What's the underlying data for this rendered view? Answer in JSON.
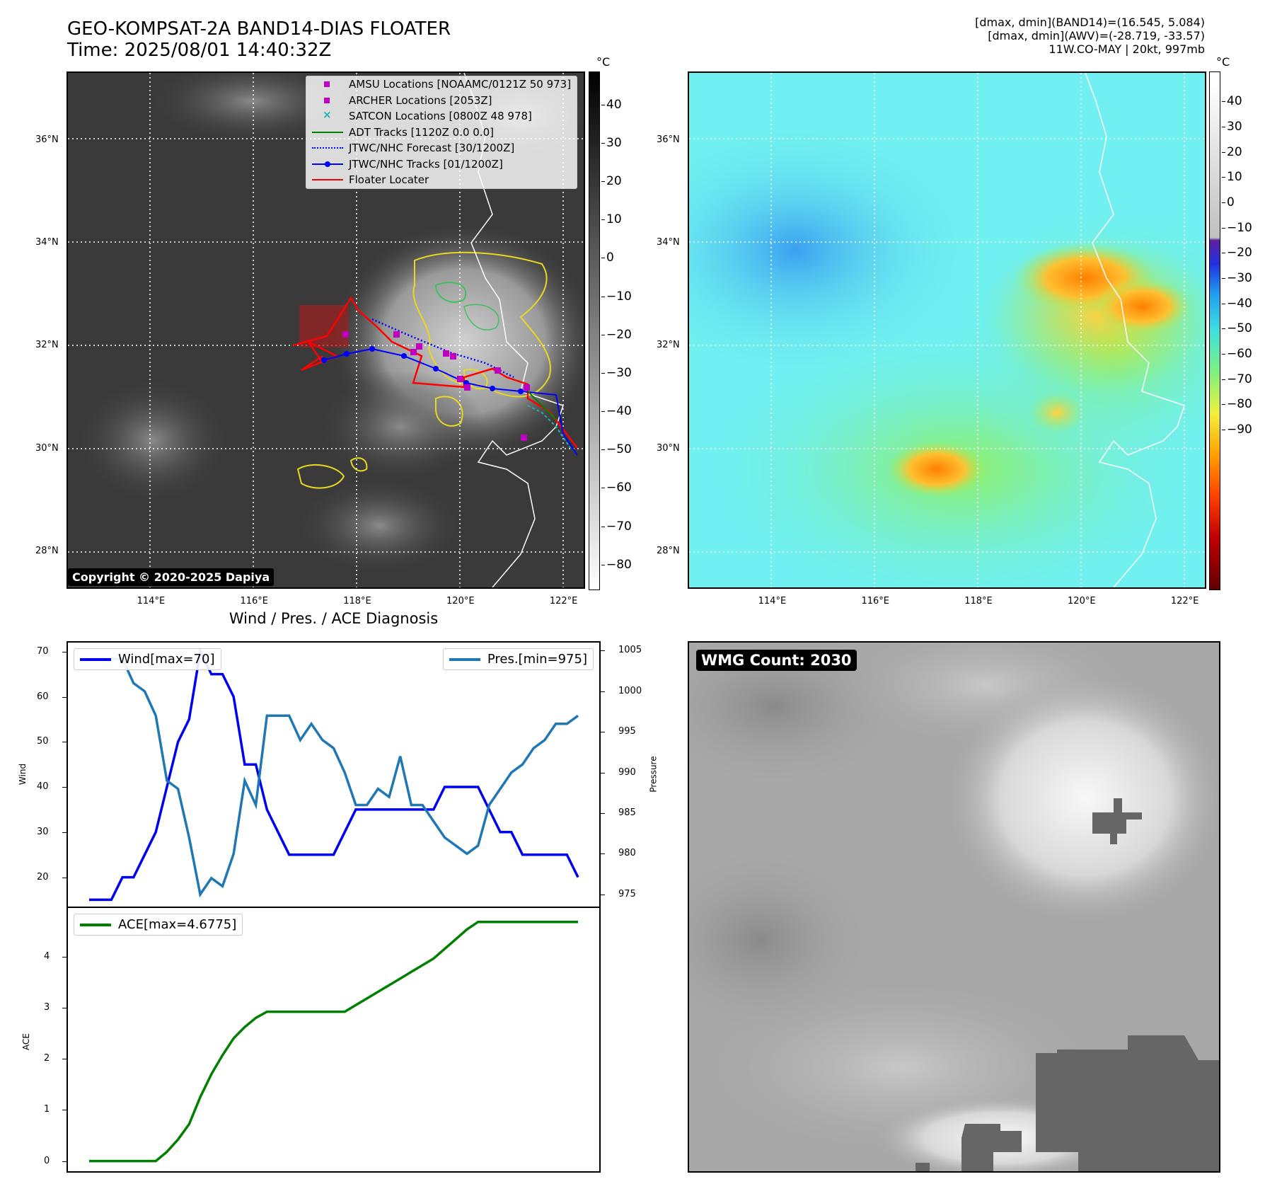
{
  "header": {
    "title_line1": "GEO-KOMPSAT-2A BAND14-DIAS FLOATER",
    "title_line2": "Time: 2025/08/01 14:40:32Z",
    "info_line1": "[dmax, dmin](BAND14)=(16.545, 5.084)",
    "info_line2": "[dmax, dmin](AWV)=(-28.719, -33.57)",
    "info_line3": "11W.CO-MAY | 20kt, 997mb"
  },
  "map_axes": {
    "lon_ticks": [
      "114°E",
      "116°E",
      "118°E",
      "120°E",
      "122°E"
    ],
    "lat_ticks": [
      "36°N",
      "34°N",
      "32°N",
      "30°N",
      "28°N"
    ],
    "lon_values": [
      114,
      116,
      118,
      120,
      122
    ],
    "lat_values": [
      36,
      34,
      32,
      30,
      28
    ],
    "lon_range": [
      112.4,
      122.4
    ],
    "lat_range": [
      27.3,
      37.3
    ]
  },
  "ir_panel": {
    "colorbar_unit": "°C",
    "colorbar_ticks": [
      "40",
      "30",
      "20",
      "10",
      "0",
      "−10",
      "−20",
      "−30",
      "−40",
      "−50",
      "−60",
      "−70",
      "−80"
    ],
    "copyright": "Copyright © 2020-2025 Dapiya",
    "legend": [
      {
        "label": "AMSU Locations [NOAAMC/0121Z 50 973]",
        "marker": "square",
        "color": "#c000c0"
      },
      {
        "label": "ARCHER Locations [2053Z]",
        "marker": "square",
        "color": "#c000c0"
      },
      {
        "label": "SATCON Locations [0800Z 48 978]",
        "marker": "x",
        "color": "#20b0b0"
      },
      {
        "label": "ADT Tracks [1120Z 0.0 0.0]",
        "marker": "line",
        "color": "#008000"
      },
      {
        "label": "JTWC/NHC Forecast [30/1200Z]",
        "marker": "dotted",
        "color": "#0000ff"
      },
      {
        "label": "JTWC/NHC Tracks [01/1200Z]",
        "marker": "line-dot",
        "color": "#0000ff"
      },
      {
        "label": "Floater Locater",
        "marker": "line",
        "color": "#ff0000"
      }
    ]
  },
  "awv_panel": {
    "colorbar_unit": "°C",
    "colorbar_ticks": [
      "40",
      "30",
      "20",
      "10",
      "0",
      "−10",
      "−20",
      "−30",
      "−40",
      "−50",
      "−60",
      "−70",
      "−80",
      "−90"
    ]
  },
  "wmg_panel": {
    "label": "WMG Count: 2030"
  },
  "diagnosis": {
    "title": "Wind / Pres. / ACE Diagnosis",
    "wind_axis_label": "Wind",
    "pressure_axis_label": "Pressure",
    "ace_axis_label": "ACE",
    "wind_legend": "Wind[max=70]",
    "pres_legend": "Pres.[min=975]",
    "ace_legend": "ACE[max=4.6775]",
    "wind_ticks": [
      "70",
      "60",
      "50",
      "40",
      "30",
      "20"
    ],
    "pres_ticks": [
      "1005",
      "1000",
      "995",
      "990",
      "985",
      "980",
      "975"
    ],
    "ace_ticks": [
      "4",
      "3",
      "2",
      "1",
      "0"
    ],
    "colors": {
      "wind": "#0000ee",
      "pres": "#1f77b4",
      "ace": "#008000"
    }
  },
  "chart_data": [
    {
      "type": "line",
      "title": "Wind / Pres. / ACE Diagnosis",
      "ylabel": "Wind",
      "ylim": [
        13.5,
        72
      ],
      "series": [
        {
          "name": "Wind[max=70]",
          "values": [
            15,
            15,
            15,
            20,
            20,
            25,
            30,
            40,
            50,
            55,
            70,
            65,
            65,
            60,
            45,
            45,
            35,
            30,
            25,
            25,
            25,
            25,
            25,
            30,
            35,
            35,
            35,
            35,
            35,
            35,
            35,
            35,
            40,
            40,
            40,
            40,
            35,
            30,
            30,
            25,
            25,
            25,
            25,
            25,
            20
          ]
        }
      ]
    },
    {
      "type": "line",
      "ylabel": "Pressure",
      "ylim": [
        973.5,
        1006
      ],
      "series": [
        {
          "name": "Pres.[min=975]",
          "values": [
            1004,
            1004,
            1004,
            1004,
            1001,
            1000,
            997,
            989,
            988,
            982,
            975,
            977,
            976,
            980,
            989,
            986,
            997,
            997,
            997,
            994,
            996,
            994,
            993,
            990,
            986,
            986,
            988,
            987,
            992,
            986,
            986,
            984,
            982,
            981,
            980,
            981,
            986,
            988,
            990,
            991,
            993,
            994,
            996,
            996,
            997
          ]
        }
      ]
    },
    {
      "type": "line",
      "ylabel": "ACE",
      "ylim": [
        -0.2,
        4.95
      ],
      "series": [
        {
          "name": "ACE[max=4.6775]",
          "values": [
            0,
            0,
            0,
            0,
            0,
            0,
            0,
            0.18,
            0.42,
            0.72,
            1.25,
            1.7,
            2.07,
            2.4,
            2.62,
            2.8,
            2.92,
            2.92,
            2.92,
            2.92,
            2.92,
            2.92,
            2.92,
            2.92,
            3.05,
            3.18,
            3.31,
            3.44,
            3.57,
            3.7,
            3.83,
            3.96,
            4.15,
            4.34,
            4.53,
            4.6775,
            4.6775,
            4.6775,
            4.6775,
            4.6775,
            4.6775,
            4.6775,
            4.6775,
            4.6775,
            4.6775
          ]
        }
      ]
    }
  ]
}
